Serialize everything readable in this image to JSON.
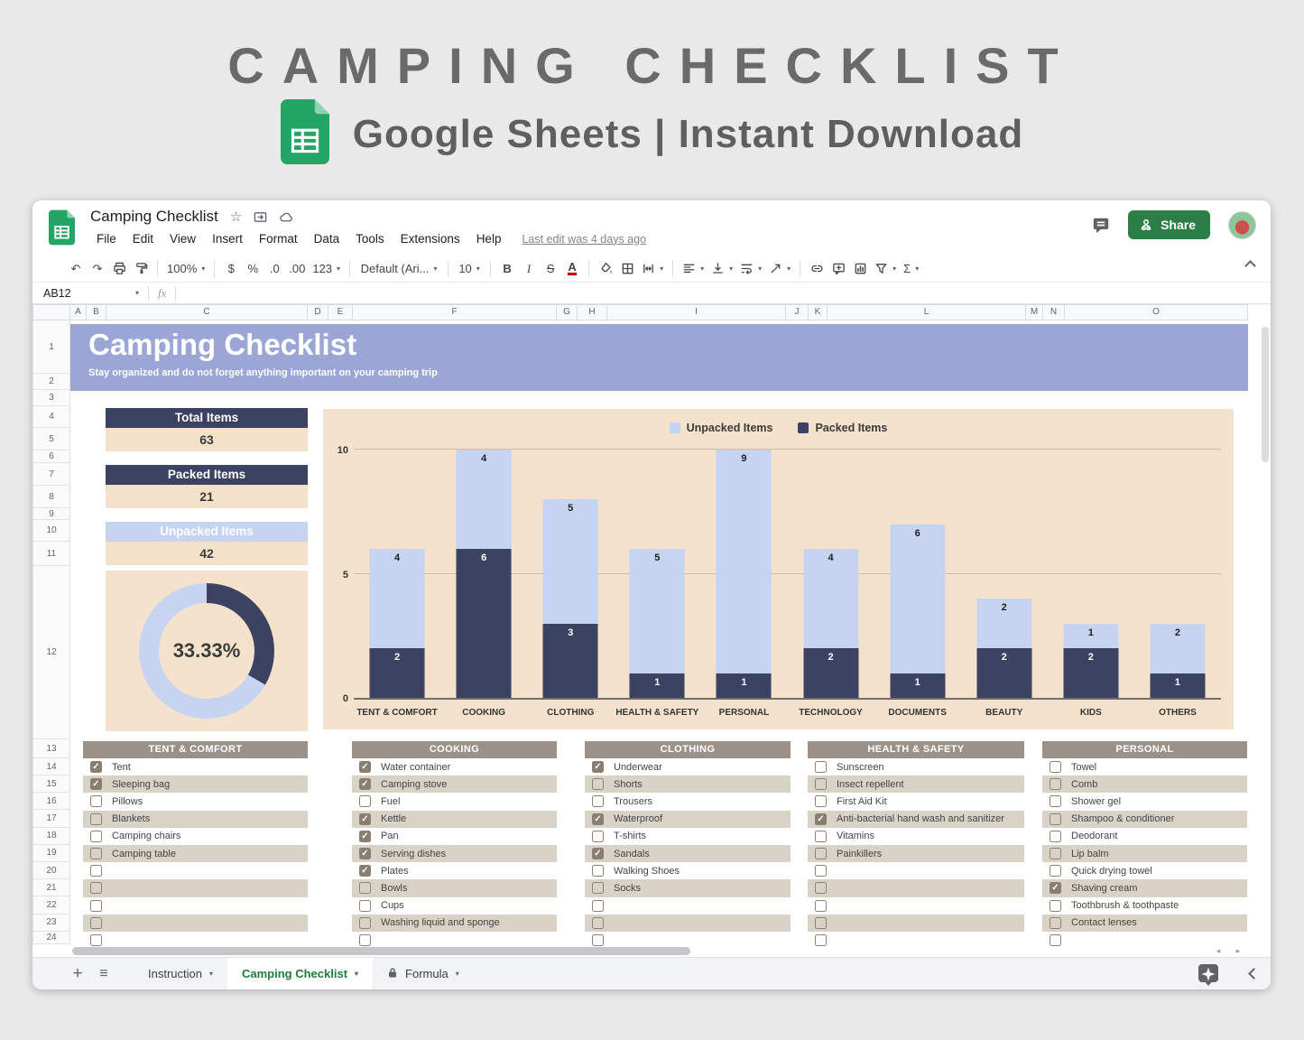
{
  "hero": {
    "title": "CAMPING CHECKLIST",
    "subtitle": "Google Sheets | Instant Download"
  },
  "titlebar": {
    "doc_title": "Camping Checklist",
    "menus": [
      "File",
      "Edit",
      "View",
      "Insert",
      "Format",
      "Data",
      "Tools",
      "Extensions",
      "Help"
    ],
    "last_edit": "Last edit was 4 days ago",
    "share_label": "Share"
  },
  "toolbar": {
    "items": [
      {
        "name": "undo",
        "label": "↶"
      },
      {
        "name": "redo",
        "label": "↷"
      },
      {
        "name": "print",
        "icon": "print"
      },
      {
        "name": "paint-format",
        "icon": "paint-format"
      },
      {
        "divider": true
      },
      {
        "name": "zoom",
        "label": "100%",
        "caret": true
      },
      {
        "divider": true
      },
      {
        "name": "format-currency",
        "label": "$"
      },
      {
        "name": "format-percent",
        "label": "%"
      },
      {
        "name": "decrease-decimals",
        "label": ".0"
      },
      {
        "name": "increase-decimals",
        "label": ".00"
      },
      {
        "name": "number-format",
        "label": "123",
        "caret": true
      },
      {
        "divider": true
      },
      {
        "name": "font",
        "label": "Default (Ari...",
        "caret": true
      },
      {
        "divider": true
      },
      {
        "name": "font-size",
        "label": "10",
        "caret": true,
        "wide": true
      },
      {
        "divider": true
      },
      {
        "name": "bold",
        "label": "B",
        "style": "bold-l"
      },
      {
        "name": "italic",
        "label": "I",
        "style": "italic-l"
      },
      {
        "name": "strikethrough",
        "label": "S",
        "style": "strike-l"
      },
      {
        "name": "text-color",
        "label": "A",
        "underbar": true
      },
      {
        "divider": true
      },
      {
        "name": "fill-color",
        "icon": "fill-color"
      },
      {
        "name": "borders",
        "icon": "borders"
      },
      {
        "name": "merge-cells",
        "icon": "merge-cells",
        "caret": true
      },
      {
        "divider": true
      },
      {
        "name": "horizontal-align",
        "icon": "h-align",
        "caret": true
      },
      {
        "name": "vertical-align",
        "icon": "v-align",
        "caret": true
      },
      {
        "name": "text-wrap",
        "icon": "wrap",
        "caret": true
      },
      {
        "name": "text-rotation",
        "icon": "rotate",
        "caret": true
      },
      {
        "divider": true
      },
      {
        "name": "insert-link",
        "icon": "link"
      },
      {
        "name": "insert-comment",
        "icon": "comment"
      },
      {
        "name": "insert-chart",
        "icon": "chart"
      },
      {
        "name": "create-filter",
        "icon": "filter",
        "caret": true
      },
      {
        "name": "functions",
        "label": "Σ",
        "caret": true
      }
    ]
  },
  "formula_bar": {
    "cell_ref": "AB12",
    "fx_label": "fx"
  },
  "grid": {
    "col_labels": [
      "A",
      "B",
      "C",
      "D",
      "E",
      "F",
      "G",
      "H",
      "I",
      "J",
      "K",
      "L",
      "M",
      "N",
      "O"
    ],
    "row_labels": [
      "1",
      "2",
      "3",
      "4",
      "5",
      "6",
      "7",
      "8",
      "9",
      "10",
      "11",
      "12",
      "13",
      "14",
      "15",
      "16",
      "17",
      "18",
      "19",
      "20",
      "21",
      "22",
      "23",
      "24"
    ]
  },
  "banner": {
    "title": "Camping Checklist",
    "subtitle": "Stay organized and do not forget anything important on your camping trip"
  },
  "stats": [
    {
      "label": "Total Items",
      "value": "63",
      "variant": "dark"
    },
    {
      "label": "Packed Items",
      "value": "21",
      "variant": "dark"
    },
    {
      "label": "Unpacked Items",
      "value": "42",
      "variant": "light"
    }
  ],
  "chart_data": [
    {
      "type": "bar",
      "stacked": true,
      "categories": [
        "TENT & COMFORT",
        "COOKING",
        "CLOTHING",
        "HEALTH & SAFETY",
        "PERSONAL",
        "TECHNOLOGY",
        "DOCUMENTS",
        "BEAUTY",
        "KIDS",
        "OTHERS"
      ],
      "series": [
        {
          "name": "Packed Items",
          "color": "#3b4262",
          "values": [
            2,
            6,
            3,
            1,
            1,
            2,
            1,
            2,
            2,
            1
          ]
        },
        {
          "name": "Unpacked Items",
          "color": "#c6d4f2",
          "values": [
            4,
            4,
            5,
            5,
            9,
            4,
            6,
            2,
            1,
            2
          ]
        }
      ],
      "legend_order": [
        "Unpacked Items",
        "Packed Items"
      ],
      "ylim": [
        0,
        10
      ],
      "yticks": [
        0,
        5,
        10
      ],
      "background": "#f4e2cc",
      "legend_position": "top-center",
      "grid": true
    },
    {
      "type": "donut",
      "label": "33.33%",
      "percent_packed": 33.33,
      "colors": {
        "packed": "#3b4262",
        "unpacked": "#c6d4f2"
      },
      "background": "#f4e2cc"
    }
  ],
  "checklists": [
    {
      "title": "TENT & COMFORT",
      "items": [
        {
          "label": "Tent",
          "checked": true
        },
        {
          "label": "Sleeping bag",
          "checked": true
        },
        {
          "label": "Pillows",
          "checked": false
        },
        {
          "label": "Blankets",
          "checked": false
        },
        {
          "label": "Camping chairs",
          "checked": false
        },
        {
          "label": "Camping table",
          "checked": false
        },
        {
          "label": "",
          "checked": false
        },
        {
          "label": "",
          "checked": false
        },
        {
          "label": "",
          "checked": false
        },
        {
          "label": "",
          "checked": false
        },
        {
          "label": "",
          "checked": false
        }
      ]
    },
    {
      "title": "COOKING",
      "items": [
        {
          "label": "Water container",
          "checked": true
        },
        {
          "label": "Camping stove",
          "checked": true
        },
        {
          "label": "Fuel",
          "checked": false
        },
        {
          "label": "Kettle",
          "checked": true
        },
        {
          "label": "Pan",
          "checked": true
        },
        {
          "label": "Serving dishes",
          "checked": true
        },
        {
          "label": "Plates",
          "checked": true
        },
        {
          "label": "Bowls",
          "checked": false
        },
        {
          "label": "Cups",
          "checked": false
        },
        {
          "label": "Washing liquid and sponge",
          "checked": false
        },
        {
          "label": "",
          "checked": false
        }
      ]
    },
    {
      "title": "CLOTHING",
      "items": [
        {
          "label": "Underwear",
          "checked": true
        },
        {
          "label": "Shorts",
          "checked": false
        },
        {
          "label": "Trousers",
          "checked": false
        },
        {
          "label": "Waterproof",
          "checked": true
        },
        {
          "label": "T-shirts",
          "checked": false
        },
        {
          "label": "Sandals",
          "checked": true
        },
        {
          "label": "Walking Shoes",
          "checked": false
        },
        {
          "label": "Socks",
          "checked": false
        },
        {
          "label": "",
          "checked": false
        },
        {
          "label": "",
          "checked": false
        },
        {
          "label": "",
          "checked": false
        }
      ]
    },
    {
      "title": "HEALTH & SAFETY",
      "items": [
        {
          "label": "Sunscreen",
          "checked": false
        },
        {
          "label": "Insect repellent",
          "checked": false
        },
        {
          "label": "First Aid Kit",
          "checked": false
        },
        {
          "label": "Anti-bacterial hand wash and sanitizer",
          "checked": true
        },
        {
          "label": "Vitamins",
          "checked": false
        },
        {
          "label": "Painkillers",
          "checked": false
        },
        {
          "label": "",
          "checked": false
        },
        {
          "label": "",
          "checked": false
        },
        {
          "label": "",
          "checked": false
        },
        {
          "label": "",
          "checked": false
        },
        {
          "label": "",
          "checked": false
        }
      ]
    },
    {
      "title": "PERSONAL",
      "items": [
        {
          "label": "Towel",
          "checked": false
        },
        {
          "label": "Comb",
          "checked": false
        },
        {
          "label": "Shower gel",
          "checked": false
        },
        {
          "label": "Shampoo & conditioner",
          "checked": false
        },
        {
          "label": "Deodorant",
          "checked": false
        },
        {
          "label": "Lip balm",
          "checked": false
        },
        {
          "label": "Quick drying towel",
          "checked": false
        },
        {
          "label": "Shaving cream",
          "checked": true
        },
        {
          "label": "Toothbrush & toothpaste",
          "checked": false
        },
        {
          "label": "Contact lenses",
          "checked": false
        },
        {
          "label": "",
          "checked": false
        }
      ]
    }
  ],
  "sheet_tabs": [
    {
      "label": "Instruction",
      "active": false,
      "locked": false
    },
    {
      "label": "Camping Checklist",
      "active": true,
      "locked": false
    },
    {
      "label": "Formula",
      "active": false,
      "locked": true
    }
  ],
  "colors": {
    "banner": "#9ba6d6",
    "navy": "#3b4262",
    "periwinkle": "#c6d4f2",
    "beige": "#f4e2cc",
    "stat_value_bg": "#f4e1ca",
    "table_header": "#9c9189",
    "table_alt_row": "#d9d2c7",
    "share_green": "#2b7f46",
    "sheets_green": "#23a566",
    "active_tab_green": "#188038"
  }
}
